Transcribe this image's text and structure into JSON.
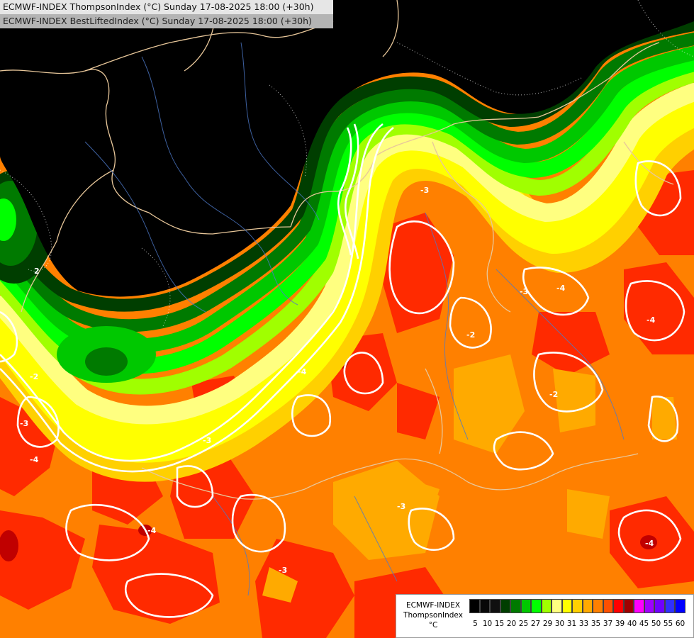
{
  "header": {
    "line1": "ECMWF-INDEX ThompsonIndex (°C) Sunday 17-08-2025 18:00 (+30h)",
    "line2": "ECMWF-INDEX BestLiftedIndex (°C) Sunday 17-08-2025 18:00 (+30h)"
  },
  "contour_labels": [
    "-4",
    "-4",
    "-3",
    "-2",
    "-3",
    "-4",
    "-3",
    "-4",
    "-2",
    "-3",
    "-3",
    "-4",
    "-3",
    "-2",
    "-4",
    "2"
  ],
  "legend": {
    "source": "ECMWF-INDEX",
    "name": "ThompsonIndex",
    "unit": "°C",
    "colors": [
      "#000000",
      "#080808",
      "#101010",
      "#003e00",
      "#007a00",
      "#00c800",
      "#00ff00",
      "#a0ff00",
      "#ffff80",
      "#ffff00",
      "#ffd000",
      "#ffaa00",
      "#ff8000",
      "#ff5000",
      "#ff0000",
      "#a00000",
      "#ff00ff",
      "#a000ff",
      "#7000ff",
      "#3030ff",
      "#0000ff"
    ],
    "ticks": [
      "5",
      "10",
      "15",
      "20",
      "25",
      "27",
      "29",
      "30",
      "31",
      "33",
      "35",
      "37",
      "39",
      "40",
      "45",
      "50",
      "55",
      "60"
    ]
  }
}
